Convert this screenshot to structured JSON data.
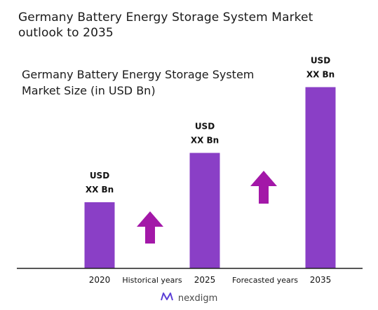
{
  "title": "Germany Battery Energy Storage System Market\noutlook to 2035",
  "subtitle": "Germany Battery Energy Storage System\nMarket Size (in USD Bn)",
  "colors": {
    "bar": "#8A3FC6",
    "arrow": "#A318A8",
    "axis": "#1a1a1a"
  },
  "chart_data": {
    "type": "bar",
    "title": "Germany Battery Energy Storage System Market Size (in USD Bn)",
    "categories": [
      "2020",
      "2025",
      "2035"
    ],
    "values": [
      1.0,
      1.75,
      2.75
    ],
    "data_labels": [
      [
        "USD",
        "XX Bn"
      ],
      [
        "USD",
        "XX Bn"
      ],
      [
        "USD",
        "XX Bn"
      ]
    ],
    "period_labels": [
      "Historical years",
      "Forecasted years"
    ],
    "ylim": [
      0,
      3.0
    ],
    "grid": false,
    "legend": "none",
    "arrow_icons": [
      "arrow-up-icon",
      "arrow-up-icon"
    ]
  },
  "logo": {
    "text": "nexdigm",
    "icon": "nexdigm-logo-icon"
  }
}
